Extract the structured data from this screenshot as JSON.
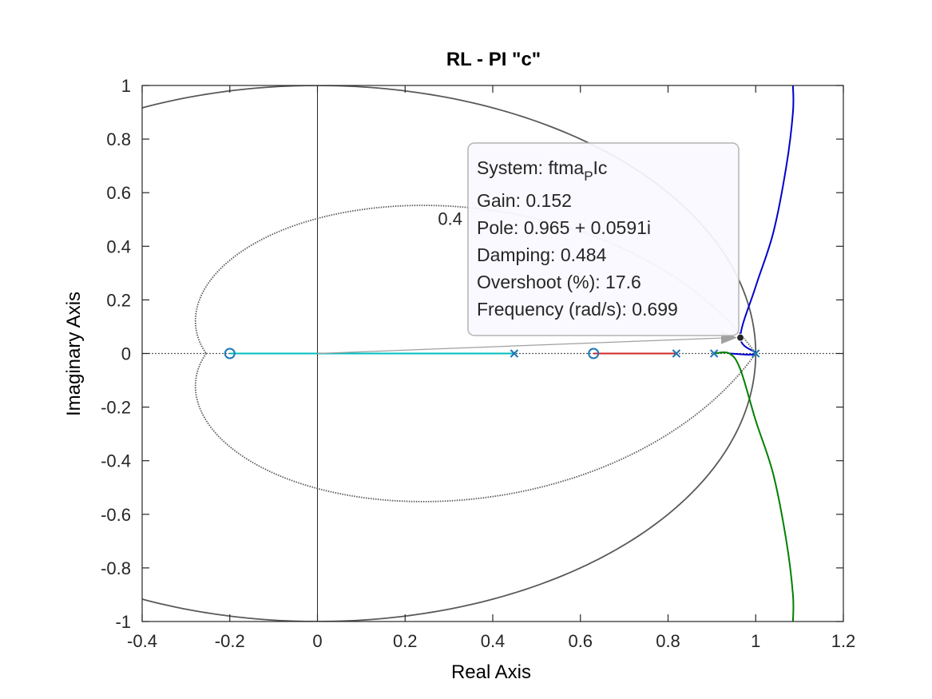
{
  "chart_data": {
    "type": "line",
    "title": "RL - PI \"c\"",
    "xlabel": "Real Axis",
    "ylabel": "Imaginary Axis",
    "xlim": [
      -0.4,
      1.2
    ],
    "ylim": [
      -1,
      1
    ],
    "x_ticks": [
      "-0.4",
      "-0.2",
      "0",
      "0.2",
      "0.4",
      "0.6",
      "0.8",
      "1",
      "1.2"
    ],
    "y_ticks": [
      "-1",
      "-0.8",
      "-0.6",
      "-0.4",
      "-0.2",
      "0",
      "0.2",
      "0.4",
      "0.6",
      "0.8",
      "1"
    ],
    "grid": "damping contours (unit circle, zeta = 0.4)",
    "grid_label": "0.4",
    "damping_contour": 0.4,
    "poles": [
      [
        0.449,
        0
      ],
      [
        0.819,
        0
      ],
      [
        0.905,
        0
      ],
      [
        1.0,
        0
      ]
    ],
    "zeros": [
      [
        -0.2,
        0
      ],
      [
        0.63,
        0
      ]
    ],
    "branches": [
      {
        "color": "#00bfbf",
        "points": [
          [
            0.449,
            0
          ],
          [
            -0.2,
            0
          ]
        ]
      },
      {
        "color": "#d62728",
        "points": [
          [
            0.819,
            0
          ],
          [
            0.63,
            0
          ]
        ]
      },
      {
        "color": "#0000cc",
        "points": [
          [
            0.94,
            0
          ],
          [
            1.0,
            0
          ],
          [
            0.965,
            0.0591
          ],
          [
            1.0,
            0.25
          ],
          [
            1.04,
            0.45
          ],
          [
            1.07,
            0.7
          ],
          [
            1.085,
            0.9
          ],
          [
            1.085,
            1.0
          ]
        ]
      },
      {
        "color": "#008000",
        "points": [
          [
            0.905,
            0
          ],
          [
            0.94,
            0
          ],
          [
            0.965,
            -0.0591
          ],
          [
            1.0,
            -0.25
          ],
          [
            1.04,
            -0.45
          ],
          [
            1.07,
            -0.7
          ],
          [
            1.085,
            -0.9
          ],
          [
            1.085,
            -1.0
          ]
        ]
      }
    ],
    "datatip": {
      "system_prefix": "System: ftma",
      "system_subscript": "P",
      "system_suffix": "Ic",
      "gain": "Gain: 0.152",
      "pole": "Pole: 0.965 + 0.0591i",
      "damping": "Damping: 0.484",
      "overshoot": "Overshoot (%): 17.6",
      "frequency": "Frequency (rad/s): 0.699",
      "point": [
        0.965,
        0.0591
      ]
    },
    "colors": {
      "axes": "#262626",
      "contour": "#595959",
      "zero_marker": "#1f77b4",
      "pole_marker": "#1f77b4"
    }
  }
}
